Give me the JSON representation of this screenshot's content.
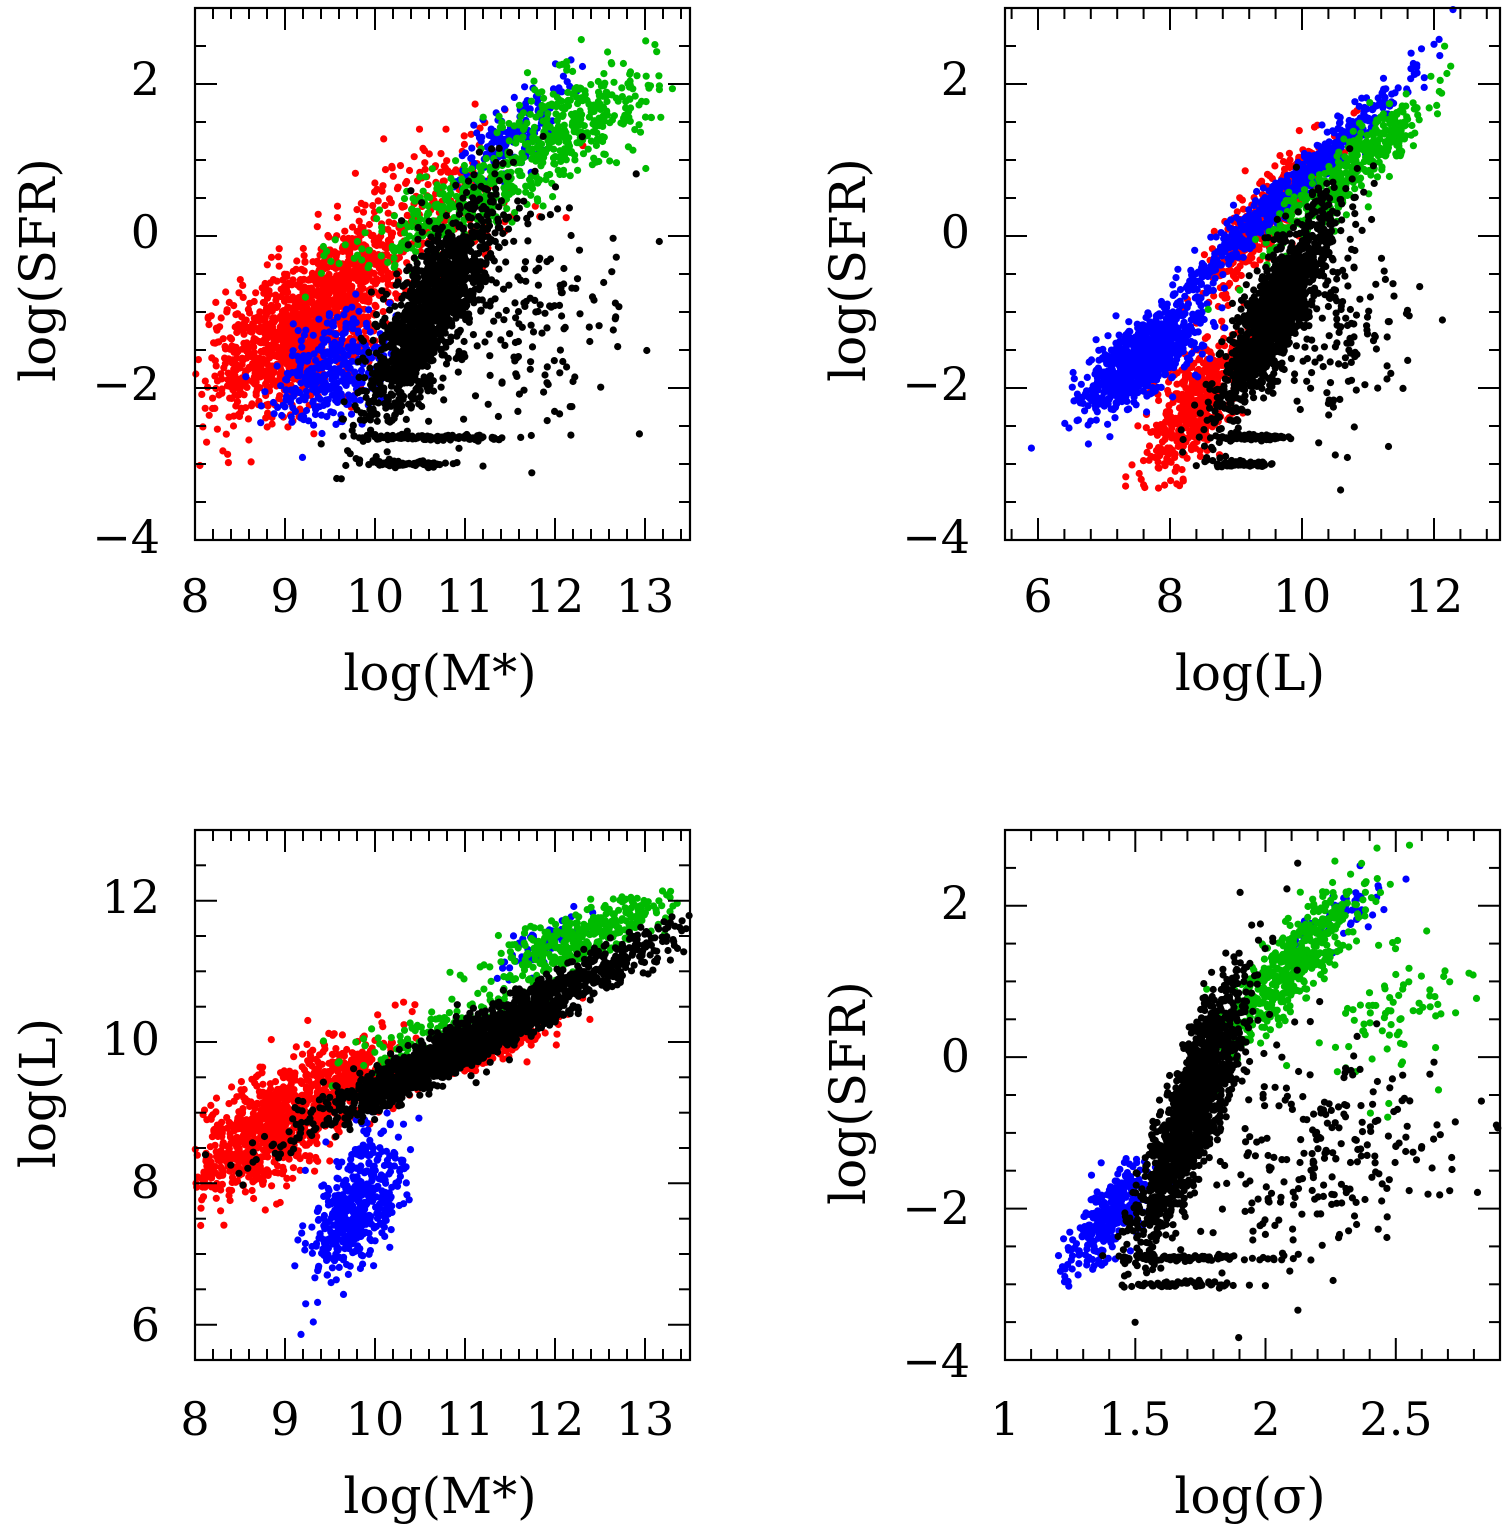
{
  "chart_data": [
    {
      "type": "scatter",
      "xlabel": "log(M*)",
      "ylabel": "log(SFR)",
      "xlim": [
        8,
        13.5
      ],
      "ylim": [
        -4,
        3
      ],
      "xticks": [
        8,
        9,
        10,
        11,
        12,
        13
      ],
      "yticks": [
        -4,
        -2,
        0,
        2
      ],
      "xtick_labels": [
        "8",
        "9",
        "10",
        "11",
        "12",
        "13"
      ],
      "ytick_labels": [
        "−4",
        "−2",
        "0",
        "2"
      ],
      "grid": false,
      "series": [
        {
          "color": "#ff0000",
          "clusters": [
            {
              "cx": 9.0,
              "cy": -1.4,
              "sx": 0.45,
              "sy": 0.5,
              "n": 900,
              "rho": 0.45
            },
            {
              "cx": 9.7,
              "cy": -0.6,
              "sx": 0.35,
              "sy": 0.45,
              "n": 500,
              "rho": 0.4
            },
            {
              "cx": 10.7,
              "cy": 0.4,
              "sx": 0.5,
              "sy": 0.5,
              "n": 200,
              "rho": 0.3
            }
          ]
        },
        {
          "color": "#0000ff",
          "clusters": [
            {
              "cx": 9.5,
              "cy": -1.8,
              "sx": 0.3,
              "sy": 0.35,
              "n": 350,
              "rho": 0.4
            },
            {
              "cx": 11.5,
              "cy": 1.3,
              "sx": 0.35,
              "sy": 0.35,
              "n": 150,
              "rho": 0.7
            }
          ]
        },
        {
          "color": "#00bb00",
          "clusters": [
            {
              "cx": 11.2,
              "cy": 0.6,
              "sx": 0.7,
              "sy": 0.5,
              "n": 400,
              "rho": 0.85
            },
            {
              "cx": 12.3,
              "cy": 1.6,
              "sx": 0.45,
              "sy": 0.35,
              "n": 250,
              "rho": 0.4
            }
          ]
        },
        {
          "color": "#000000",
          "clusters": [
            {
              "cx": 10.6,
              "cy": -1.0,
              "sx": 0.35,
              "sy": 0.7,
              "n": 1300,
              "rho": 0.8
            },
            {
              "cx": 11.6,
              "cy": -1.0,
              "sx": 0.6,
              "sy": 0.8,
              "n": 200,
              "rho": 0.1
            },
            {
              "cx": 10.6,
              "cy": -2.65,
              "sx": 0.4,
              "sy": 0.02,
              "n": 120,
              "rho": 0.0
            },
            {
              "cx": 10.4,
              "cy": -3.0,
              "sx": 0.3,
              "sy": 0.02,
              "n": 80,
              "rho": 0.0
            }
          ]
        }
      ]
    },
    {
      "type": "scatter",
      "xlabel": "log(L)",
      "ylabel": "log(SFR)",
      "xlim": [
        5.5,
        13
      ],
      "ylim": [
        -4,
        3
      ],
      "xticks": [
        6,
        8,
        10,
        12
      ],
      "yticks": [
        -4,
        -2,
        0,
        2
      ],
      "xtick_labels": [
        "6",
        "8",
        "10",
        "12"
      ],
      "ytick_labels": [
        "−4",
        "−2",
        "0",
        "2"
      ],
      "grid": false,
      "series": [
        {
          "color": "#ff0000",
          "clusters": [
            {
              "cx": 8.4,
              "cy": -2.2,
              "sx": 0.35,
              "sy": 0.45,
              "n": 500,
              "rho": 0.6
            },
            {
              "cx": 9.5,
              "cy": 0.3,
              "sx": 0.45,
              "sy": 0.5,
              "n": 400,
              "rho": 0.85
            }
          ]
        },
        {
          "color": "#0000ff",
          "clusters": [
            {
              "cx": 7.6,
              "cy": -1.6,
              "sx": 0.45,
              "sy": 0.35,
              "n": 800,
              "rho": 0.7
            },
            {
              "cx": 9.8,
              "cy": 0.6,
              "sx": 0.9,
              "sy": 0.75,
              "n": 600,
              "rho": 0.98
            }
          ]
        },
        {
          "color": "#00bb00",
          "clusters": [
            {
              "cx": 10.8,
              "cy": 0.9,
              "sx": 0.6,
              "sy": 0.5,
              "n": 400,
              "rho": 0.9
            }
          ]
        },
        {
          "color": "#000000",
          "clusters": [
            {
              "cx": 9.6,
              "cy": -1.0,
              "sx": 0.45,
              "sy": 0.7,
              "n": 1300,
              "rho": 0.85
            },
            {
              "cx": 10.6,
              "cy": -1.2,
              "sx": 0.55,
              "sy": 0.8,
              "n": 150,
              "rho": 0.2
            },
            {
              "cx": 9.2,
              "cy": -2.65,
              "sx": 0.3,
              "sy": 0.02,
              "n": 100,
              "rho": 0.0
            },
            {
              "cx": 9.1,
              "cy": -3.0,
              "sx": 0.25,
              "sy": 0.02,
              "n": 70,
              "rho": 0.0
            }
          ]
        }
      ]
    },
    {
      "type": "scatter",
      "xlabel": "log(M*)",
      "ylabel": "log(L)",
      "xlim": [
        8,
        13.5
      ],
      "ylim": [
        5.5,
        13
      ],
      "xticks": [
        8,
        9,
        10,
        11,
        12,
        13
      ],
      "yticks": [
        6,
        8,
        10,
        12
      ],
      "xtick_labels": [
        "8",
        "9",
        "10",
        "11",
        "12",
        "13"
      ],
      "ytick_labels": [
        "6",
        "8",
        "10",
        "12"
      ],
      "grid": false,
      "series": [
        {
          "color": "#ff0000",
          "clusters": [
            {
              "cx": 8.8,
              "cy": 8.7,
              "sx": 0.4,
              "sy": 0.45,
              "n": 800,
              "rho": 0.55
            },
            {
              "cx": 9.7,
              "cy": 9.5,
              "sx": 0.35,
              "sy": 0.35,
              "n": 350,
              "rho": 0.5
            },
            {
              "cx": 11.3,
              "cy": 9.9,
              "sx": 0.35,
              "sy": 0.2,
              "n": 120,
              "rho": 0.7
            }
          ]
        },
        {
          "color": "#0000ff",
          "clusters": [
            {
              "cx": 9.8,
              "cy": 7.7,
              "sx": 0.25,
              "sy": 0.5,
              "n": 500,
              "rho": 0.5
            },
            {
              "cx": 11.9,
              "cy": 11.4,
              "sx": 0.3,
              "sy": 0.25,
              "n": 60,
              "rho": 0.7
            }
          ]
        },
        {
          "color": "#00bb00",
          "clusters": [
            {
              "cx": 12.3,
              "cy": 11.5,
              "sx": 0.5,
              "sy": 0.3,
              "n": 350,
              "rho": 0.8
            },
            {
              "cx": 10.7,
              "cy": 10.2,
              "sx": 0.5,
              "sy": 0.3,
              "n": 120,
              "rho": 0.7
            }
          ]
        },
        {
          "color": "#000000",
          "clusters": [
            {
              "cx": 10.9,
              "cy": 9.9,
              "sx": 0.8,
              "sy": 0.55,
              "n": 1600,
              "rho": 0.95
            },
            {
              "cx": 12.6,
              "cy": 11.1,
              "sx": 0.45,
              "sy": 0.3,
              "n": 200,
              "rho": 0.8
            }
          ]
        }
      ]
    },
    {
      "type": "scatter",
      "xlabel": "log(σ)",
      "ylabel": "log(SFR)",
      "xlim": [
        1,
        2.9
      ],
      "ylim": [
        -4,
        3
      ],
      "xticks": [
        1,
        1.5,
        2,
        2.5
      ],
      "yticks": [
        -4,
        -2,
        0,
        2
      ],
      "xtick_labels": [
        "1",
        "1.5",
        "2",
        "2.5"
      ],
      "ytick_labels": [
        "−4",
        "−2",
        "0",
        "2"
      ],
      "grid": false,
      "series": [
        {
          "color": "#0000ff",
          "clusters": [
            {
              "cx": 1.4,
              "cy": -2.1,
              "sx": 0.08,
              "sy": 0.35,
              "n": 300,
              "rho": 0.7
            },
            {
              "cx": 2.3,
              "cy": 1.9,
              "sx": 0.1,
              "sy": 0.25,
              "n": 60,
              "rho": 0.8
            }
          ]
        },
        {
          "color": "#00bb00",
          "clusters": [
            {
              "cx": 2.1,
              "cy": 1.2,
              "sx": 0.14,
              "sy": 0.55,
              "n": 500,
              "rho": 0.85
            },
            {
              "cx": 2.5,
              "cy": 0.6,
              "sx": 0.15,
              "sy": 0.55,
              "n": 80,
              "rho": 0.3
            }
          ]
        },
        {
          "color": "#000000",
          "clusters": [
            {
              "cx": 1.72,
              "cy": -0.7,
              "sx": 0.1,
              "sy": 0.85,
              "n": 1500,
              "rho": 0.85
            },
            {
              "cx": 2.2,
              "cy": -1.2,
              "sx": 0.25,
              "sy": 0.8,
              "n": 250,
              "rho": 0.1
            },
            {
              "cx": 1.7,
              "cy": -2.65,
              "sx": 0.15,
              "sy": 0.02,
              "n": 100,
              "rho": 0.0
            },
            {
              "cx": 1.7,
              "cy": -3.0,
              "sx": 0.1,
              "sy": 0.02,
              "n": 60,
              "rho": 0.0
            }
          ]
        }
      ]
    }
  ]
}
